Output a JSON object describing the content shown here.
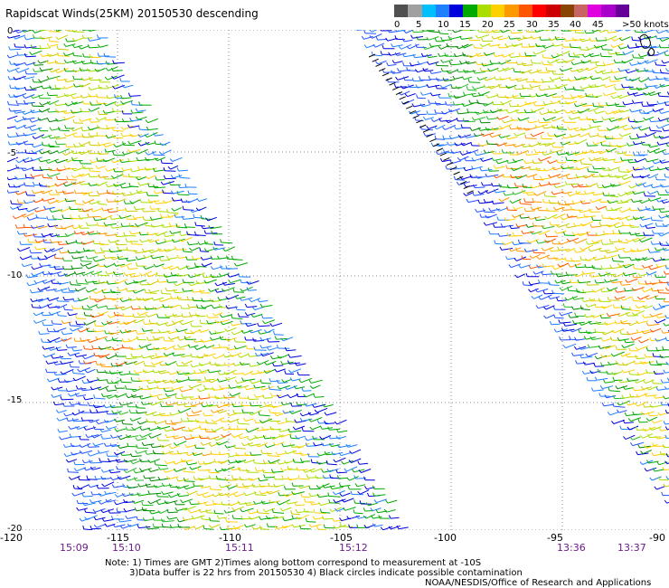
{
  "title": "Rapidscat Winds(25KM) 20150530 descending",
  "legend": {
    "labels": [
      "0",
      "5",
      "10",
      "15",
      "20",
      "25",
      "30",
      "35",
      "40",
      "45",
      ">50 knots"
    ],
    "colors": [
      "#505050",
      "#a0a0a0",
      "#00bfff",
      "#1e7fff",
      "#0000dd",
      "#00aa00",
      "#aadd00",
      "#ffd000",
      "#ff9900",
      "#ff5500",
      "#ff0000",
      "#cc0000",
      "#884400",
      "#c86464",
      "#e000e0",
      "#aa00cc",
      "#660099"
    ]
  },
  "axes": {
    "longitudes": [
      "-120",
      "-115",
      "-110",
      "-105",
      "-100",
      "-95",
      "-90"
    ],
    "latitudes": [
      "0",
      "-5",
      "-10",
      "-15",
      "-20"
    ]
  },
  "times": [
    "15:09",
    "15:10",
    "15:11",
    "15:12",
    "13:36",
    "13:37"
  ],
  "notes": {
    "line1": "Note: 1) Times are GMT 2)Times along bottom correspond to measurement at -10S",
    "line2": "3)Data buffer is 22 hrs from 20150530 4) Black circles indicate possible contamination",
    "credit": "NOAA/NESDIS/Office of Research and Applications"
  },
  "map_data": {
    "lon_range": [
      -120,
      -90
    ],
    "lat_range": [
      0,
      -20
    ],
    "grid": "dotted every 5 degrees",
    "swaths": [
      {
        "time_start": "15:09",
        "time_end": "15:12",
        "position": "left"
      },
      {
        "time_start": "13:36",
        "time_end": "13:37",
        "position": "right"
      }
    ],
    "dominant_speed_colors": [
      "green",
      "yellow",
      "orange",
      "blue"
    ]
  }
}
